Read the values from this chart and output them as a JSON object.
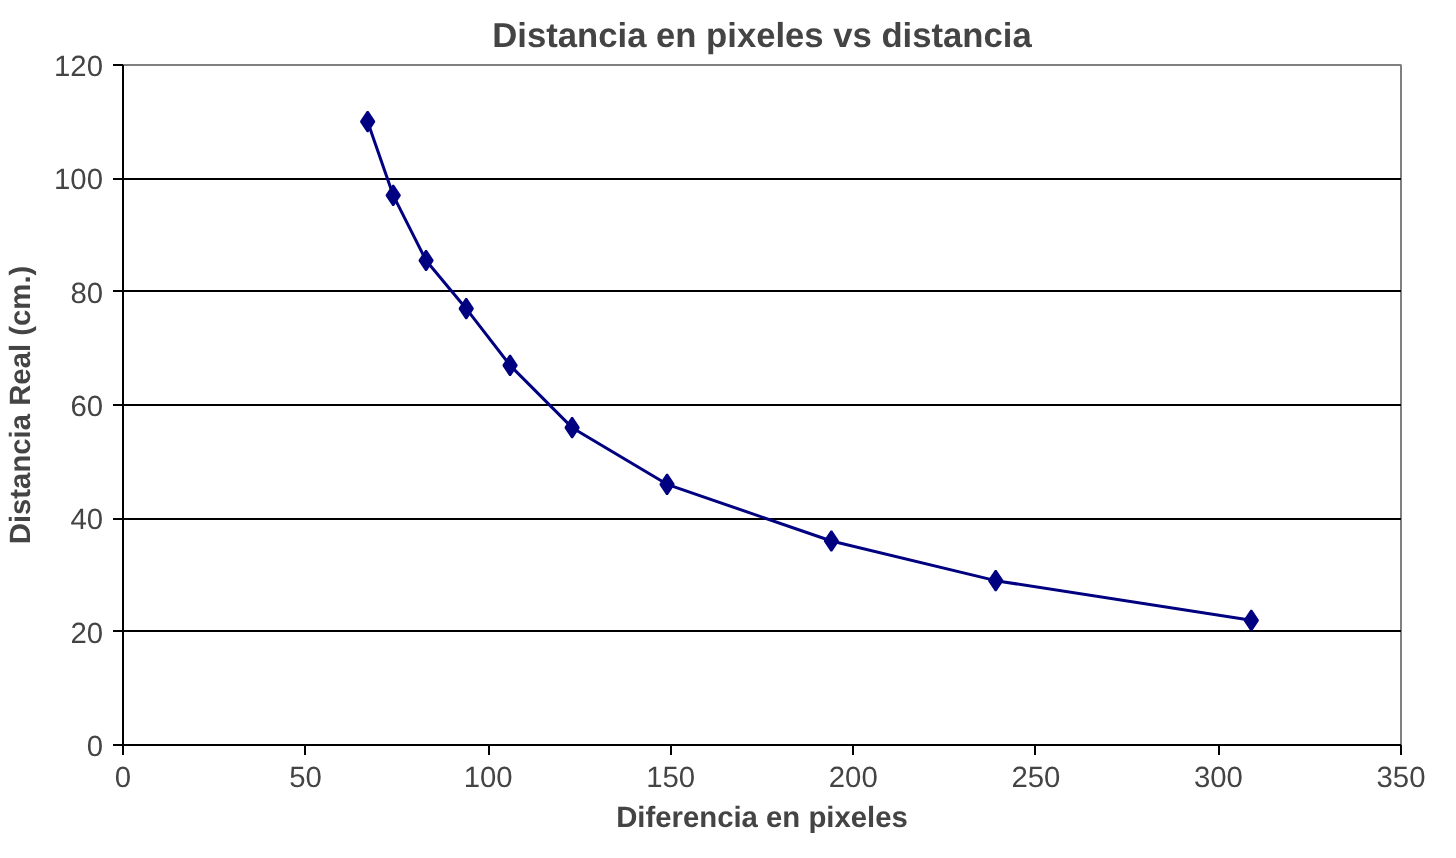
{
  "chart_data": {
    "type": "line",
    "title": "Distancia en pixeles vs distancia",
    "xlabel": "Diferencia en pixeles",
    "ylabel": "Distancia Real (cm.)",
    "x": [
      67,
      74,
      83,
      94,
      106,
      123,
      149,
      194,
      239,
      309
    ],
    "series": [
      {
        "color": "#000080",
        "values": [
          110,
          97,
          85.5,
          77,
          67,
          56,
          46,
          36,
          29,
          22
        ]
      }
    ],
    "xlim": [
      0,
      350
    ],
    "xticks": [
      0,
      50,
      100,
      150,
      200,
      250,
      300,
      350
    ],
    "ylim": [
      0,
      120
    ],
    "yticks": [
      0,
      20,
      40,
      60,
      80,
      100,
      120
    ],
    "grid": "y",
    "marker": "diamond",
    "line_style": "solid"
  }
}
